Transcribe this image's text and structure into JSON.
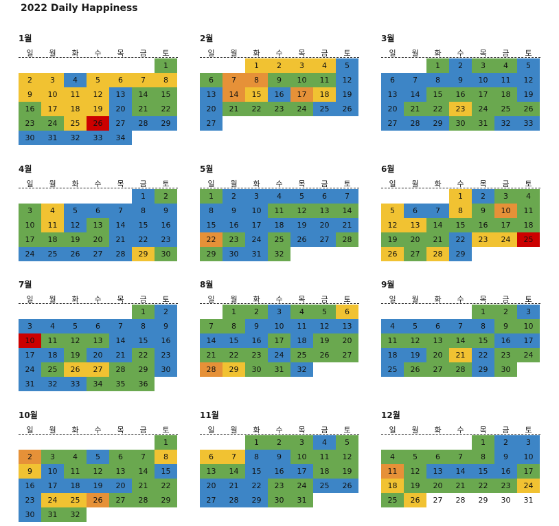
{
  "title": "2022 Daily Happiness",
  "weekdays": [
    "일",
    "월",
    "화",
    "수",
    "목",
    "금",
    "토"
  ],
  "colors": {
    "g": "#6aa84f",
    "b": "#3d85c6",
    "y": "#f1c232",
    "o": "#e69138",
    "r": "#cc0000",
    "w": "#ffffff"
  },
  "months": [
    {
      "name": "1월",
      "offset": 6,
      "days": "gyybyyyyyyyybgggyyybggggyrbbbbbbbb"
    },
    {
      "name": "2월",
      "offset": 2,
      "days": "yyyybgoogggbboyboybbggggbbb"
    },
    {
      "name": "3월",
      "offset": 2,
      "days": "gbggbbbbbbbbbbggggbbggygggbbbggbb"
    },
    {
      "name": "4월",
      "offset": 5,
      "days": "bggybbbbbgybgbbbggggbbbbbbbbyg"
    },
    {
      "name": "5월",
      "offset": 0,
      "days": "gbbbbbbbbbggggbbbbbbbogbgbbggbbg"
    },
    {
      "name": "6월",
      "offset": 3,
      "days": "ybggybbygogyyggggggggbyyrygyb"
    },
    {
      "name": "7월",
      "offset": 5,
      "days": "gbbbbbbbbrgggbbbbbgbbgbbgyyggbbbbggg"
    },
    {
      "name": "8월",
      "offset": 1,
      "days": "ggbggyggbbbbbbbbgbgggggbgggoyggb"
    },
    {
      "name": "9월",
      "offset": 4,
      "days": "ggbbbbbbgggggggbbbbgybggbgggbg"
    },
    {
      "name": "10월",
      "offset": 6,
      "days": "goggbggyybggggbbbbbbggbyyogggbgg"
    },
    {
      "name": "11월",
      "offset": 2,
      "days": "gggbgyybbgggggbbbggbbbggbbbbbgg"
    },
    {
      "name": "12월",
      "offset": 4,
      "days": "gbbgggggbbogbbbbgygggggygywwwww"
    }
  ]
}
